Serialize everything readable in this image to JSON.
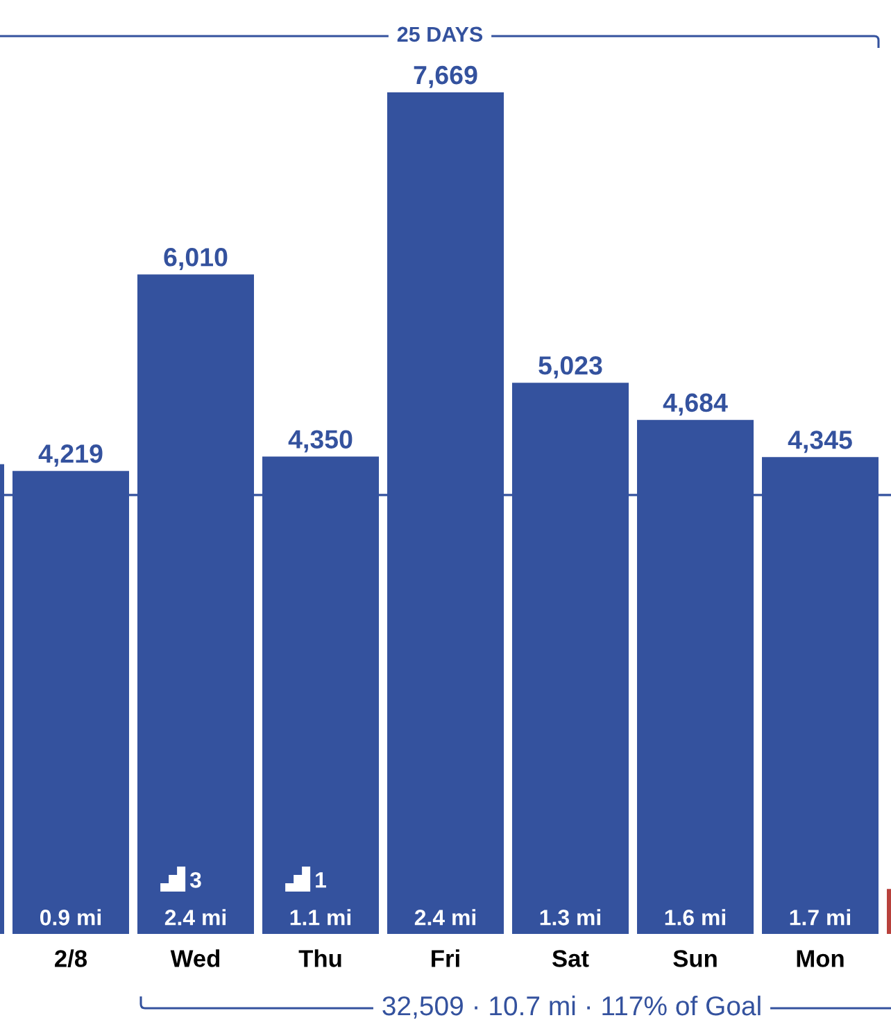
{
  "chart_data": {
    "type": "bar",
    "categories": [
      null,
      "2/8",
      "Wed",
      "Thu",
      "Fri",
      "Sat",
      "Sun",
      "Mon",
      null
    ],
    "values": [
      4280,
      4219,
      6010,
      4350,
      7669,
      5023,
      4684,
      4345,
      410
    ],
    "colors": [
      "#34529e",
      "#34529e",
      "#34529e",
      "#34529e",
      "#34529e",
      "#34529e",
      "#34529e",
      "#34529e",
      "#b8413c"
    ],
    "value_labels": [
      null,
      "4,219",
      "6,010",
      "4,350",
      "7,669",
      "5,023",
      "4,684",
      "4,345",
      null
    ],
    "ref_lines": [
      {
        "axis": "y",
        "value": 4000,
        "color": "#34529e"
      }
    ],
    "tick_labels": "x",
    "annotations": [
      "25 DAYS",
      "32,509 · 10.7 mi · 117% of Goal",
      "0.9 mi",
      "3\n2.4 mi",
      "1\n1.1 mi",
      "2.4 mi",
      "1.3 mi",
      "1.6 mi",
      "1.7 mi"
    ]
  }
}
